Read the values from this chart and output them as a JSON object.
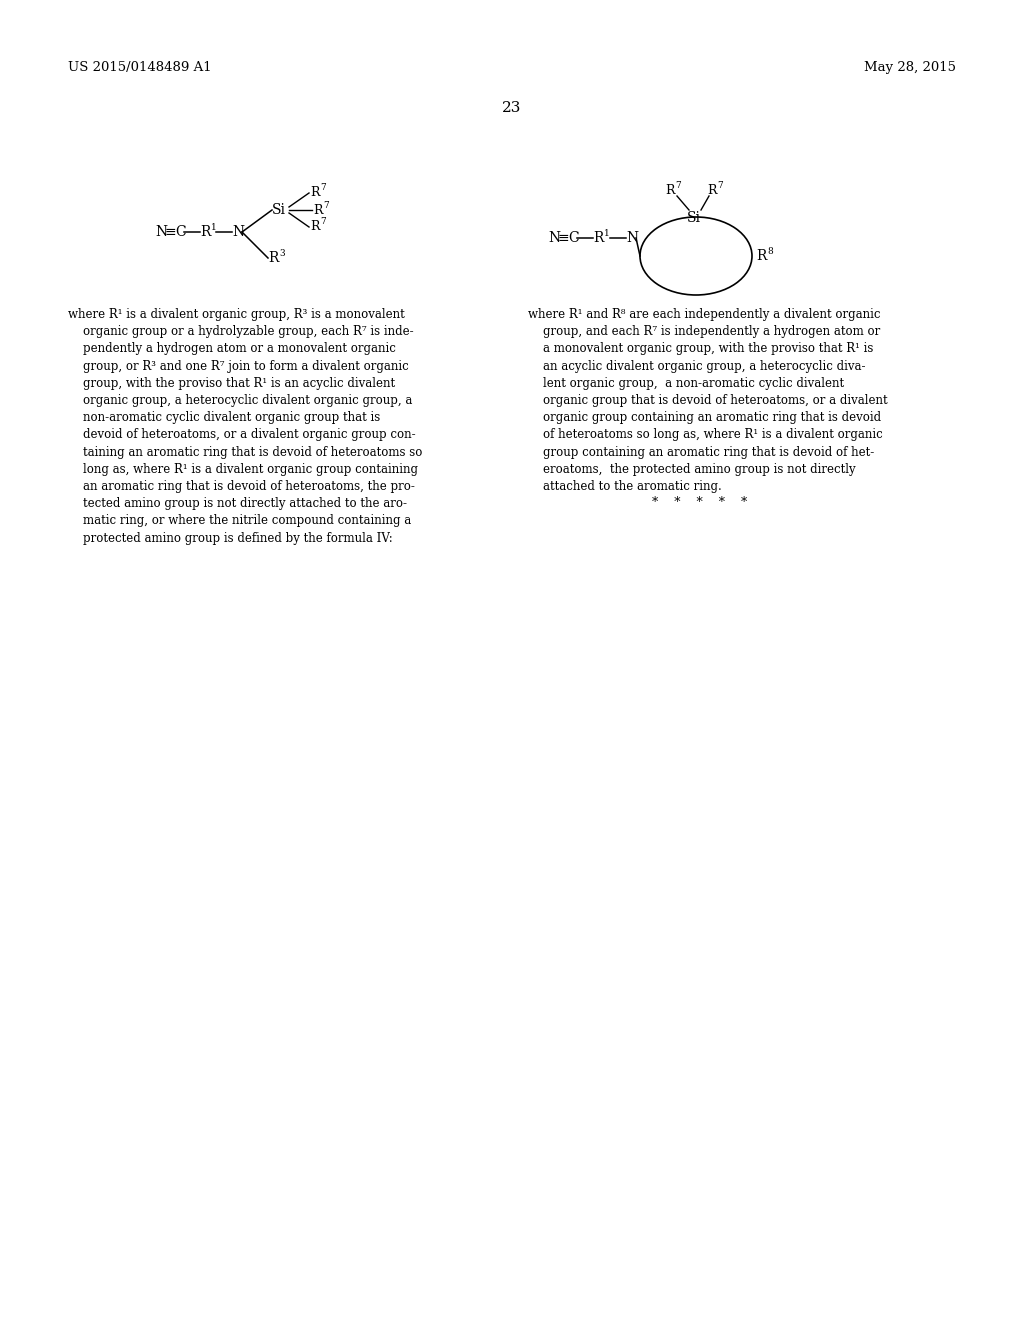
{
  "background": "#ffffff",
  "header_left": "US 2015/0148489 A1",
  "header_right": "May 28, 2015",
  "page_num": "23",
  "left_para": "where R¹ is a divalent organic group, R³ is a monovalent\n    organic group or a hydrolyzable group, each R⁷ is inde-\n    pendently a hydrogen atom or a monovalent organic\n    group, or R³ and one R⁷ join to form a divalent organic\n    group, with the proviso that R¹ is an acyclic divalent\n    organic group, a heterocyclic divalent organic group, a\n    non-aromatic cyclic divalent organic group that is\n    devoid of heteroatoms, or a divalent organic group con-\n    taining an aromatic ring that is devoid of heteroatoms so\n    long as, where R¹ is a divalent organic group containing\n    an aromatic ring that is devoid of heteroatoms, the pro-\n    tected amino group is not directly attached to the aro-\n    matic ring, or where the nitrile compound containing a\n    protected amino group is defined by the formula IV:",
  "right_para": "where R¹ and R⁸ are each independently a divalent organic\n    group, and each R⁷ is independently a hydrogen atom or\n    a monovalent organic group, with the proviso that R¹ is\n    an acyclic divalent organic group, a heterocyclic diva-\n    lent organic group,  a non-aromatic cyclic divalent\n    organic group that is devoid of heteroatoms, or a divalent\n    organic group containing an aromatic ring that is devoid\n    of heteroatoms so long as, where R¹ is a divalent organic\n    group containing an aromatic ring that is devoid of het-\n    eroatoms,  the protected amino group is not directly\n    attached to the aromatic ring.",
  "stars": "*    *    *    *    *"
}
